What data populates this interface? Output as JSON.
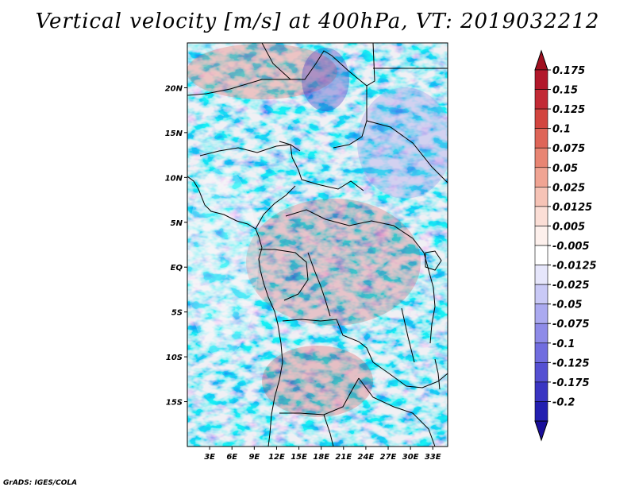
{
  "title": "Vertical velocity [m/s] at 400hPa, VT: 2019032212",
  "footer": "GrADS: IGES/COLA",
  "map": {
    "lon_range": [
      0,
      35
    ],
    "lat_range": [
      -20,
      25
    ],
    "lat_ticks": [
      {
        "value": 20,
        "label": "20N"
      },
      {
        "value": 15,
        "label": "15N"
      },
      {
        "value": 10,
        "label": "10N"
      },
      {
        "value": 5,
        "label": "5N"
      },
      {
        "value": 0,
        "label": "EQ"
      },
      {
        "value": -5,
        "label": "5S"
      },
      {
        "value": -10,
        "label": "10S"
      },
      {
        "value": -15,
        "label": "15S"
      }
    ],
    "lon_ticks": [
      {
        "value": 3,
        "label": "3E"
      },
      {
        "value": 6,
        "label": "6E"
      },
      {
        "value": 9,
        "label": "9E"
      },
      {
        "value": 12,
        "label": "12E"
      },
      {
        "value": 15,
        "label": "15E"
      },
      {
        "value": 18,
        "label": "18E"
      },
      {
        "value": 21,
        "label": "21E"
      },
      {
        "value": 24,
        "label": "24E"
      },
      {
        "value": 27,
        "label": "27E"
      },
      {
        "value": 30,
        "label": "30E"
      },
      {
        "value": 33,
        "label": "33E"
      }
    ]
  },
  "colorbar": {
    "levels": [
      {
        "label": "0.175",
        "color": "#b2182b"
      },
      {
        "label": "0.15",
        "color": "#c22a35"
      },
      {
        "label": "0.125",
        "color": "#d2453f"
      },
      {
        "label": "0.1",
        "color": "#de6558"
      },
      {
        "label": "0.075",
        "color": "#e88573"
      },
      {
        "label": "0.05",
        "color": "#f0a493"
      },
      {
        "label": "0.025",
        "color": "#f6c3b6"
      },
      {
        "label": "0.0125",
        "color": "#fbded6"
      },
      {
        "label": "0.005",
        "color": "#fdf0ec"
      },
      {
        "label": "-0.005",
        "color": "#ffffff"
      },
      {
        "label": "-0.0125",
        "color": "#e6e6fb"
      },
      {
        "label": "-0.025",
        "color": "#c9c9f6"
      },
      {
        "label": "-0.05",
        "color": "#abaaf0"
      },
      {
        "label": "-0.075",
        "color": "#8e8be8"
      },
      {
        "label": "-0.1",
        "color": "#716ddf"
      },
      {
        "label": "-0.125",
        "color": "#5550d2"
      },
      {
        "label": "-0.175",
        "color": "#3a35c2"
      },
      {
        "label": "-0.2",
        "color": "#231fb0"
      }
    ],
    "top_arrow_color": "#a01020",
    "bottom_arrow_color": "#1a0f9a"
  }
}
